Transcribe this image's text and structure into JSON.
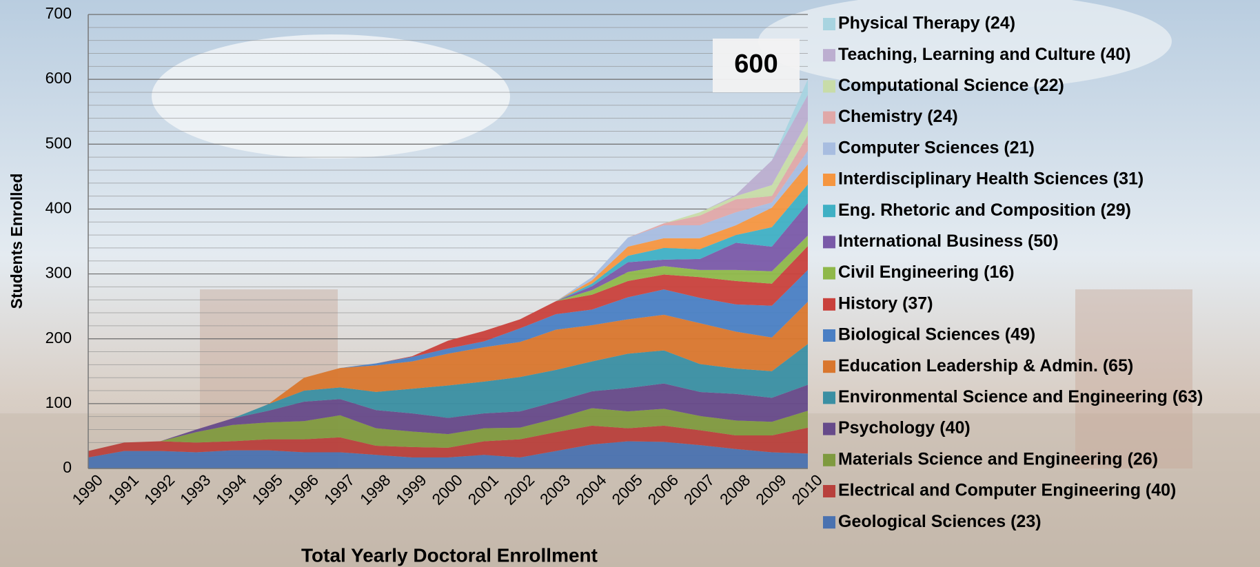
{
  "chart_data": {
    "type": "stacked_area",
    "title": "Total Yearly Doctoral Enrollment",
    "y_label": "Students Enrolled",
    "annotation": "600",
    "categories": [
      "1990",
      "1991",
      "1992",
      "1993",
      "1994",
      "1995",
      "1996",
      "1997",
      "1998",
      "1999",
      "2000",
      "2001",
      "2002",
      "2003",
      "2004",
      "2005",
      "2006",
      "2007",
      "2008",
      "2009",
      "2010"
    ],
    "ylim": [
      0,
      700
    ],
    "yticks": [
      0,
      100,
      200,
      300,
      400,
      500,
      600,
      700
    ],
    "grid": true,
    "minor_grid_step": 20,
    "legend": "right",
    "series": [
      {
        "name": "Geological Sciences (23)",
        "color": "#4a72b0",
        "values": [
          17,
          27,
          27,
          25,
          28,
          28,
          25,
          25,
          21,
          17,
          17,
          21,
          17,
          27,
          37,
          42,
          41,
          36,
          30,
          25,
          23
        ]
      },
      {
        "name": "Electrical and Computer Engineering (40)",
        "color": "#b8403c",
        "values": [
          10,
          13,
          15,
          15,
          14,
          17,
          20,
          23,
          14,
          16,
          15,
          21,
          28,
          29,
          29,
          20,
          25,
          23,
          21,
          26,
          40
        ]
      },
      {
        "name": "Materials Science and Engineering (26)",
        "color": "#7f9a3f",
        "values": [
          0,
          0,
          0,
          16,
          25,
          26,
          28,
          34,
          27,
          24,
          21,
          20,
          18,
          21,
          27,
          26,
          26,
          22,
          23,
          21,
          26
        ]
      },
      {
        "name": "Psychology (40)",
        "color": "#664a8a",
        "values": [
          0,
          0,
          0,
          4,
          10,
          18,
          30,
          25,
          28,
          28,
          25,
          23,
          25,
          26,
          26,
          36,
          39,
          37,
          41,
          37,
          40
        ]
      },
      {
        "name": "Environmental Science and Engineering (63)",
        "color": "#3a8fa3",
        "values": [
          0,
          0,
          0,
          0,
          0,
          10,
          17,
          18,
          28,
          38,
          50,
          49,
          53,
          49,
          46,
          53,
          51,
          43,
          39,
          41,
          63
        ]
      },
      {
        "name": "Education Leadership & Admin. (65)",
        "color": "#d9772e",
        "values": [
          0,
          0,
          0,
          0,
          0,
          0,
          20,
          30,
          41,
          42,
          49,
          53,
          54,
          62,
          56,
          53,
          55,
          63,
          57,
          52,
          65
        ]
      },
      {
        "name": "Biological Sciences (49)",
        "color": "#4a7fc4",
        "values": [
          0,
          0,
          0,
          0,
          0,
          0,
          0,
          0,
          3,
          7,
          8,
          9,
          21,
          24,
          24,
          34,
          39,
          39,
          42,
          49,
          49
        ]
      },
      {
        "name": "History (37)",
        "color": "#c9413c",
        "values": [
          0,
          0,
          0,
          0,
          0,
          0,
          0,
          0,
          0,
          1,
          12,
          16,
          14,
          20,
          23,
          25,
          23,
          32,
          36,
          34,
          37
        ]
      },
      {
        "name": "Civil Engineering (16)",
        "color": "#8fb84a",
        "values": [
          0,
          0,
          0,
          0,
          0,
          0,
          0,
          0,
          0,
          0,
          0,
          0,
          0,
          0,
          7,
          14,
          13,
          11,
          17,
          19,
          16
        ]
      },
      {
        "name": "International Business (50)",
        "color": "#7a5aa8",
        "values": [
          0,
          0,
          0,
          0,
          0,
          0,
          0,
          0,
          0,
          0,
          0,
          0,
          0,
          0,
          6,
          15,
          10,
          17,
          42,
          38,
          50
        ]
      },
      {
        "name": "Eng. Rhetoric and Composition (29)",
        "color": "#3fb0c4",
        "values": [
          0,
          0,
          0,
          0,
          0,
          0,
          0,
          0,
          0,
          0,
          0,
          0,
          0,
          0,
          4,
          10,
          18,
          15,
          12,
          30,
          29
        ]
      },
      {
        "name": "Interdisciplinary Health Sciences (31)",
        "color": "#f59640",
        "values": [
          0,
          0,
          0,
          0,
          0,
          0,
          0,
          0,
          0,
          0,
          0,
          0,
          0,
          0,
          5,
          14,
          15,
          17,
          15,
          30,
          31
        ]
      },
      {
        "name": "Computer Sciences (21)",
        "color": "#a8bde0",
        "values": [
          0,
          0,
          0,
          0,
          0,
          0,
          0,
          0,
          0,
          0,
          0,
          0,
          0,
          0,
          5,
          14,
          20,
          20,
          20,
          8,
          21
        ]
      },
      {
        "name": "Chemistry (24)",
        "color": "#e0a8a8",
        "values": [
          0,
          0,
          0,
          0,
          0,
          0,
          0,
          0,
          0,
          0,
          0,
          0,
          0,
          0,
          0,
          0,
          3,
          15,
          20,
          10,
          24
        ]
      },
      {
        "name": "Computational Science (22)",
        "color": "#c8dca8",
        "values": [
          0,
          0,
          0,
          0,
          0,
          0,
          0,
          0,
          0,
          0,
          0,
          0,
          0,
          0,
          0,
          0,
          0,
          5,
          5,
          17,
          22
        ]
      },
      {
        "name": "Teaching, Learning and Culture (40)",
        "color": "#bcaed0",
        "values": [
          0,
          0,
          0,
          0,
          0,
          0,
          0,
          0,
          0,
          0,
          0,
          0,
          0,
          0,
          0,
          0,
          0,
          0,
          2,
          38,
          40
        ]
      },
      {
        "name": "Physical Therapy (24)",
        "color": "#a8d4e0",
        "values": [
          0,
          0,
          0,
          0,
          0,
          0,
          0,
          0,
          0,
          0,
          0,
          0,
          0,
          0,
          0,
          0,
          0,
          0,
          0,
          0,
          24
        ]
      }
    ]
  }
}
